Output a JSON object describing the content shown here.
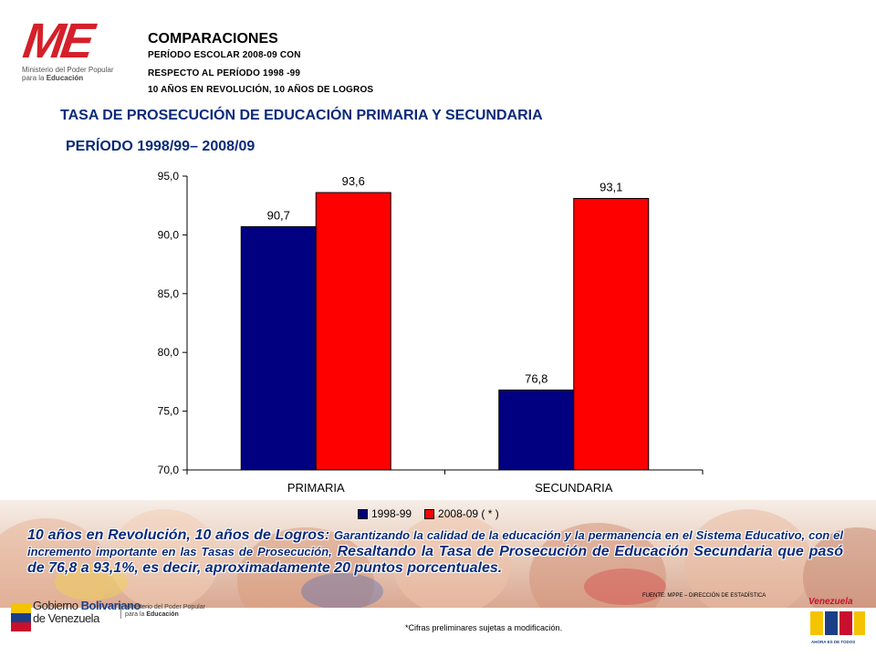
{
  "header": {
    "logo_text": "ME",
    "logo_sub_line1": "Ministerio del Poder Popular",
    "logo_sub_line2": "para la",
    "logo_sub_bold": "Educación",
    "title": "COMPARACIONES",
    "line1": "PERÍODO ESCOLAR 2008-09 CON",
    "line2": "RESPECTO AL PERÍODO 1998 -99",
    "line3": "10 AÑOS EN REVOLUCIÓN, 10 AÑOS DE LOGROS"
  },
  "colors": {
    "series_1998": "#000080",
    "series_2008": "#ff0000",
    "title_blue": "#0b2a7a",
    "brand_red": "#d4202a"
  },
  "chart_data": {
    "type": "bar",
    "title": "TASA DE PROSECUCIÓN DE EDUCACIÓN PRIMARIA Y SECUNDARIA",
    "subtitle": "PERÍODO 1998/99– 2008/09",
    "categories": [
      "PRIMARIA",
      "SECUNDARIA"
    ],
    "series": [
      {
        "name": "1998-99",
        "values": [
          90.7,
          76.8
        ],
        "labels": [
          "90,7",
          "76,8"
        ],
        "color": "#000080"
      },
      {
        "name": "2008-09 ( * )",
        "values": [
          93.6,
          93.1
        ],
        "labels": [
          "93,6",
          "93,1"
        ],
        "color": "#ff0000"
      }
    ],
    "ylim": [
      70,
      95
    ],
    "yticks": [
      70,
      75,
      80,
      85,
      90,
      95
    ],
    "ytick_labels": [
      "70,0",
      "75,0",
      "80,0",
      "85,0",
      "90,0",
      "95,0"
    ],
    "xlabel": "",
    "ylabel": "",
    "grid": false,
    "legend_position": "bottom"
  },
  "body": {
    "lead": "10 años en Revolución, 10 años de Logros:",
    "small": "Garantizando la calidad de la educación y la permanencia en el Sistema Educativo, con el incremento importante en las Tasas de Prosecución,",
    "rest": "Resaltando la Tasa de Prosecución de Educación Secundaria que pasó de 76,8 a 93,1%, es decir, aproximadamente 20 puntos porcentuales."
  },
  "footer": {
    "gob_line1": "Gobierno",
    "gob_line1_bold": "Bolivariano",
    "gob_line2": "de Venezuela",
    "min_line1": "Ministerio del Poder Popular",
    "min_line2": "para la",
    "min_bold": "Educación",
    "note": "*Cifras preliminares sujetas a modificación.",
    "source": "FUENTE: MPPE – DIRECCIÓN DE ESTADÍSTICA",
    "ven_word": "Venezuela",
    "ven_sub": "AHORA ES DE TODOS"
  }
}
